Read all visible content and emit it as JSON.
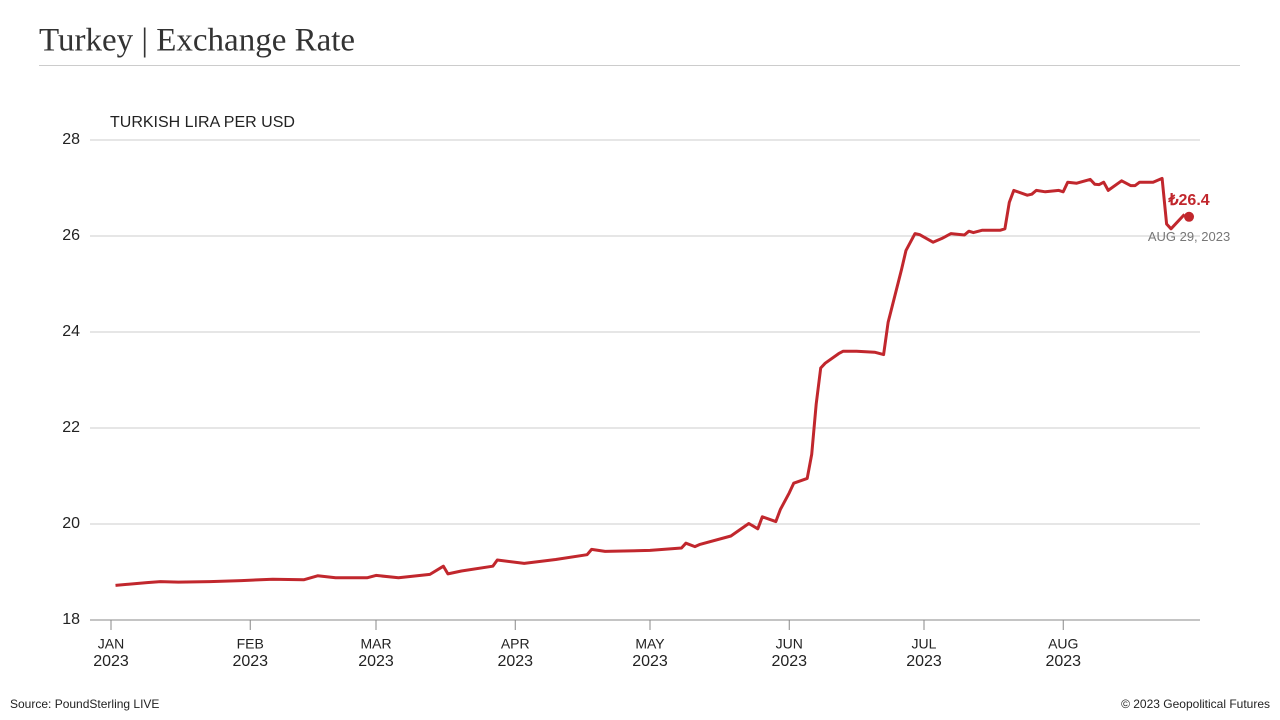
{
  "chart_data": {
    "type": "line",
    "title": "Turkey | Exchange Rate",
    "subtitle": "TURKISH LIRA PER USD",
    "source": "Source: PoundSterling LIVE",
    "copyright": "© 2023 Geopolitical Futures",
    "x": [
      "2023-01-02",
      "2023-01-09",
      "2023-01-12",
      "2023-01-16",
      "2023-01-23",
      "2023-01-30",
      "2023-02-06",
      "2023-02-13",
      "2023-02-16",
      "2023-02-20",
      "2023-02-27",
      "2023-03-01",
      "2023-03-06",
      "2023-03-13",
      "2023-03-16",
      "2023-03-17",
      "2023-03-20",
      "2023-03-27",
      "2023-03-28",
      "2023-04-03",
      "2023-04-10",
      "2023-04-17",
      "2023-04-18",
      "2023-04-21",
      "2023-05-01",
      "2023-05-08",
      "2023-05-09",
      "2023-05-11",
      "2023-05-12",
      "2023-05-19",
      "2023-05-23",
      "2023-05-25",
      "2023-05-26",
      "2023-05-29",
      "2023-05-30",
      "2023-06-01",
      "2023-06-02",
      "2023-06-05",
      "2023-06-06",
      "2023-06-07",
      "2023-06-08",
      "2023-06-09",
      "2023-06-12",
      "2023-06-13",
      "2023-06-16",
      "2023-06-20",
      "2023-06-22",
      "2023-06-23",
      "2023-06-26",
      "2023-06-27",
      "2023-06-29",
      "2023-06-30",
      "2023-07-03",
      "2023-07-05",
      "2023-07-07",
      "2023-07-10",
      "2023-07-11",
      "2023-07-12",
      "2023-07-14",
      "2023-07-18",
      "2023-07-19",
      "2023-07-20",
      "2023-07-21",
      "2023-07-24",
      "2023-07-25",
      "2023-07-26",
      "2023-07-28",
      "2023-07-31",
      "2023-08-01",
      "2023-08-02",
      "2023-08-04",
      "2023-08-07",
      "2023-08-08",
      "2023-08-09",
      "2023-08-10",
      "2023-08-11",
      "2023-08-14",
      "2023-08-16",
      "2023-08-17",
      "2023-08-18",
      "2023-08-21",
      "2023-08-23",
      "2023-08-24",
      "2023-08-25",
      "2023-08-28"
    ],
    "series": [
      {
        "color": "#c1272d",
        "values": [
          18.72,
          18.78,
          18.8,
          18.79,
          18.8,
          18.82,
          18.85,
          18.84,
          18.92,
          18.88,
          18.88,
          18.93,
          18.88,
          18.95,
          19.12,
          18.96,
          19.02,
          19.12,
          19.25,
          19.18,
          19.26,
          19.36,
          19.47,
          19.43,
          19.45,
          19.5,
          19.6,
          19.53,
          19.57,
          19.75,
          20.01,
          19.9,
          20.15,
          20.05,
          20.3,
          20.65,
          20.85,
          20.95,
          21.45,
          22.5,
          23.25,
          23.35,
          23.55,
          23.6,
          23.6,
          23.58,
          23.53,
          24.2,
          25.3,
          25.7,
          26.05,
          26.03,
          25.87,
          25.95,
          26.05,
          26.02,
          26.1,
          26.07,
          26.12,
          26.12,
          26.15,
          26.7,
          26.95,
          26.85,
          26.87,
          26.95,
          26.92,
          26.95,
          26.92,
          27.12,
          27.1,
          27.18,
          27.08,
          27.07,
          27.12,
          26.95,
          27.15,
          27.05,
          27.05,
          27.12,
          27.12,
          27.2,
          26.25,
          26.15,
          26.45
        ]
      }
    ],
    "annotation": {
      "x": "2023-08-29",
      "value": 26.4,
      "value_label": "₺26.4",
      "date_label": "AUG 29, 2023"
    },
    "xlim": [
      "2023-01-01",
      "2023-08-31"
    ],
    "xticks": [
      {
        "value": "2023-01-01",
        "label": [
          "JAN",
          "2023"
        ]
      },
      {
        "value": "2023-02-01",
        "label": [
          "FEB",
          "2023"
        ]
      },
      {
        "value": "2023-03-01",
        "label": [
          "MAR",
          "2023"
        ]
      },
      {
        "value": "2023-04-01",
        "label": [
          "APR",
          "2023"
        ]
      },
      {
        "value": "2023-05-01",
        "label": [
          "MAY",
          "2023"
        ]
      },
      {
        "value": "2023-06-01",
        "label": [
          "JUN",
          "2023"
        ]
      },
      {
        "value": "2023-07-01",
        "label": [
          "JUL",
          "2023"
        ]
      },
      {
        "value": "2023-08-01",
        "label": [
          "AUG",
          "2023"
        ]
      }
    ],
    "ylim": [
      18,
      28
    ],
    "yticks": [
      18,
      20,
      22,
      24,
      26,
      28
    ],
    "grid": true
  }
}
